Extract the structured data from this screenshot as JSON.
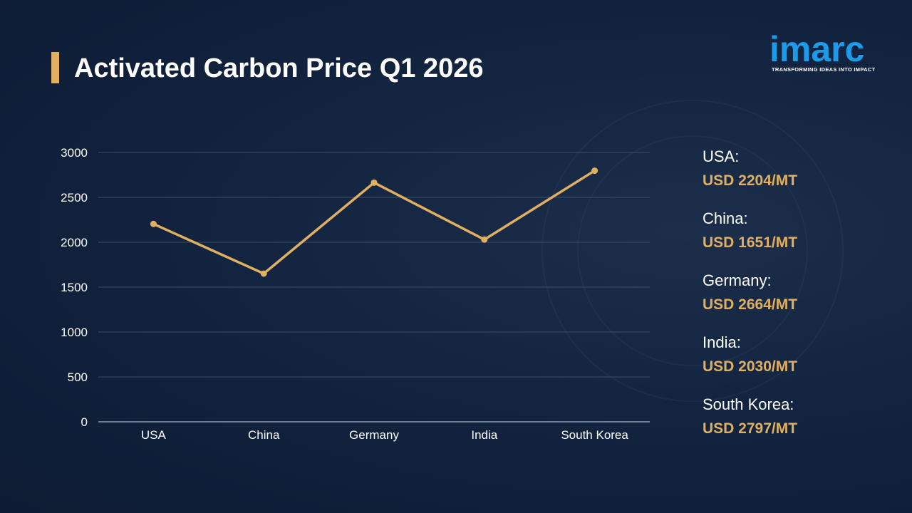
{
  "title": "Activated Carbon Price Q1 2026",
  "logo": {
    "name": "imarc",
    "tagline": "TRANSFORMING IDEAS INTO IMPACT"
  },
  "colors": {
    "background": "#132440",
    "accent": "#e0b060",
    "logo": "#1e9be8",
    "grid": "#3b4d68",
    "text": "#ffffff"
  },
  "chart_data": {
    "type": "line",
    "title": "Activated Carbon Price Q1 2026",
    "categories": [
      "USA",
      "China",
      "Germany",
      "India",
      "South Korea"
    ],
    "series": [
      {
        "values": [
          2204,
          1651,
          2664,
          2030,
          2797
        ]
      }
    ],
    "ylim": [
      0,
      3000
    ],
    "yticks": [
      "0",
      "500",
      "1000",
      "1500",
      "2000",
      "2500",
      "3000"
    ],
    "grid": true
  },
  "legend": [
    {
      "country": "USA:",
      "price": "USD 2204/MT"
    },
    {
      "country": "China:",
      "price": "USD 1651/MT"
    },
    {
      "country": "Germany:",
      "price": "USD 2664/MT"
    },
    {
      "country": "India:",
      "price": "USD 2030/MT"
    },
    {
      "country": "South Korea:",
      "price": "USD 2797/MT"
    }
  ]
}
